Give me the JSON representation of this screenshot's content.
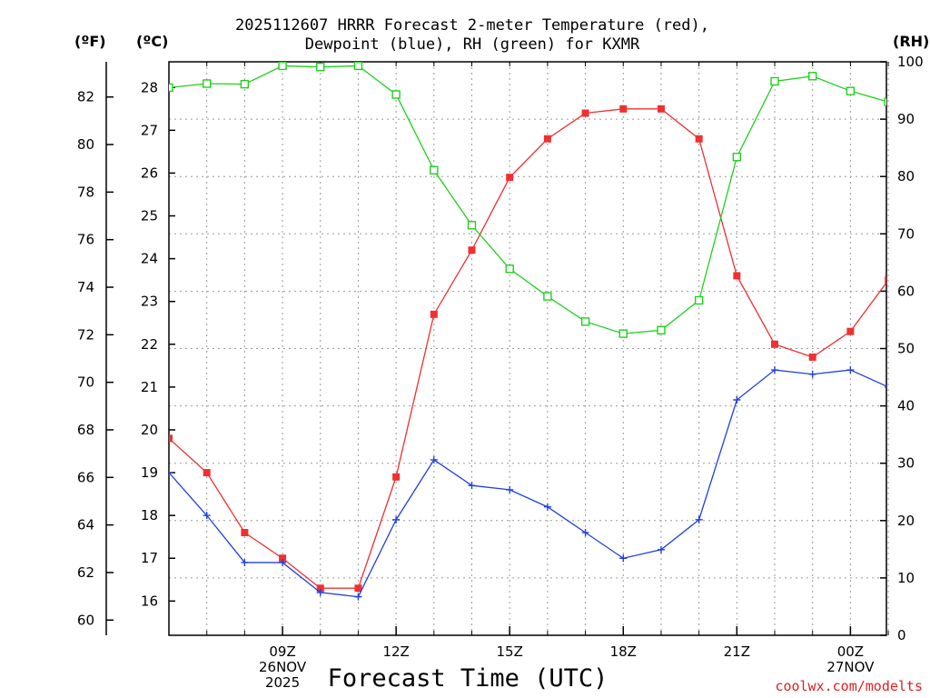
{
  "chart_data": {
    "type": "line",
    "title_line1": "2025112607 HRRR Forecast 2-meter Temperature (red),",
    "title_line2": "Dewpoint (blue), RH (green) for KXMR",
    "xlabel": "Forecast Time (UTC)",
    "credit": "coolwx.com/modelts",
    "units": {
      "fahrenheit": "(ºF)",
      "celsius": "(ºC)",
      "rh": "(RH)"
    },
    "hours": [
      6,
      7,
      8,
      9,
      10,
      11,
      12,
      13,
      14,
      15,
      16,
      17,
      18,
      19,
      20,
      21,
      22,
      23,
      24,
      25
    ],
    "x_range": [
      6,
      24.95
    ],
    "x_ticks": [
      {
        "hour": 9,
        "lines": [
          "09Z",
          "26NOV",
          "2025"
        ]
      },
      {
        "hour": 12,
        "lines": [
          "12Z"
        ]
      },
      {
        "hour": 15,
        "lines": [
          "15Z"
        ]
      },
      {
        "hour": 18,
        "lines": [
          "18Z"
        ]
      },
      {
        "hour": 21,
        "lines": [
          "21Z"
        ]
      },
      {
        "hour": 24,
        "lines": [
          "00Z",
          "27NOV"
        ]
      }
    ],
    "y_left_c": {
      "range": [
        15.2,
        28.6
      ],
      "ticks": [
        16,
        17,
        18,
        19,
        20,
        21,
        22,
        23,
        24,
        25,
        26,
        27,
        28
      ]
    },
    "y_left_f": {
      "ticks": [
        60,
        62,
        64,
        66,
        68,
        70,
        72,
        74,
        76,
        78,
        80,
        82
      ]
    },
    "y_right_rh": {
      "range": [
        0,
        100
      ],
      "ticks": [
        0,
        10,
        20,
        30,
        40,
        50,
        60,
        70,
        80,
        90,
        100
      ]
    },
    "series": [
      {
        "name": "Temperature",
        "color": "#f03030",
        "marker": "filled-square",
        "axis": "c",
        "values": [
          19.8,
          19.0,
          17.6,
          17.0,
          16.3,
          16.3,
          18.9,
          22.7,
          24.2,
          25.9,
          26.8,
          27.4,
          27.5,
          27.5,
          26.8,
          23.6,
          22.0,
          21.7,
          22.3,
          23.5
        ]
      },
      {
        "name": "Dewpoint",
        "color": "#2040e0",
        "marker": "plus",
        "axis": "c",
        "values": [
          19.0,
          18.0,
          16.9,
          16.9,
          16.2,
          16.1,
          17.9,
          19.3,
          18.7,
          18.6,
          18.2,
          17.6,
          17.0,
          17.2,
          17.9,
          20.7,
          21.4,
          21.3,
          21.4,
          21.0
        ]
      },
      {
        "name": "RH",
        "color": "#20d020",
        "marker": "open-square",
        "axis": "rh",
        "values": [
          95.5,
          96.2,
          96.1,
          99.3,
          99.1,
          99.3,
          94.3,
          81.1,
          71.5,
          63.9,
          59.1,
          54.7,
          52.6,
          53.2,
          58.4,
          83.4,
          96.6,
          97.5,
          94.9,
          93.0
        ]
      }
    ]
  }
}
